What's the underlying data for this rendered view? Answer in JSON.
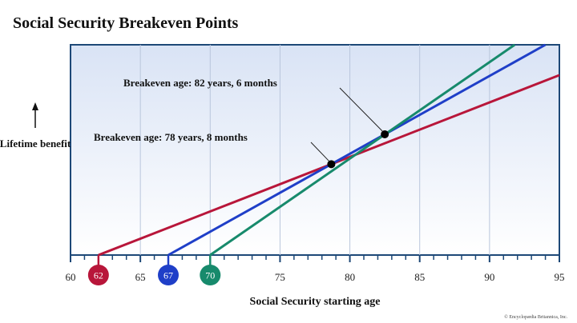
{
  "chart_data": {
    "type": "line",
    "title": "Social Security Breakeven Points",
    "xlabel": "Social Security starting age",
    "ylabel": [
      "Lifetime benefit"
    ],
    "xlim": [
      60,
      95
    ],
    "ylim": [
      0,
      2700
    ],
    "xticks": [
      60,
      65,
      70,
      75,
      80,
      85,
      90,
      95
    ],
    "xtick_labels": [
      "60",
      "65",
      "",
      "75",
      "80",
      "85",
      "90",
      "95"
    ],
    "grid": "vertical",
    "series": [
      {
        "start_label": "62",
        "color": "#b8163a",
        "points": [
          [
            62,
            0
          ],
          [
            95,
            2310
          ]
        ]
      },
      {
        "start_label": "67",
        "color": "#1f3fc8",
        "points": [
          [
            67,
            0
          ],
          [
            94,
            2700
          ]
        ]
      },
      {
        "start_label": "70",
        "color": "#178a6c",
        "points": [
          [
            70,
            0
          ],
          [
            91.8,
            2700
          ]
        ]
      }
    ],
    "annotations": [
      {
        "text": "Breakeven age: 78 years, 8 months",
        "x": 78.67,
        "y": 1167
      },
      {
        "text": "Breakeven age: 82 years, 6 months",
        "x": 82.5,
        "y": 1550
      }
    ],
    "credit": "© Encyclopædia Britannica, Inc."
  }
}
